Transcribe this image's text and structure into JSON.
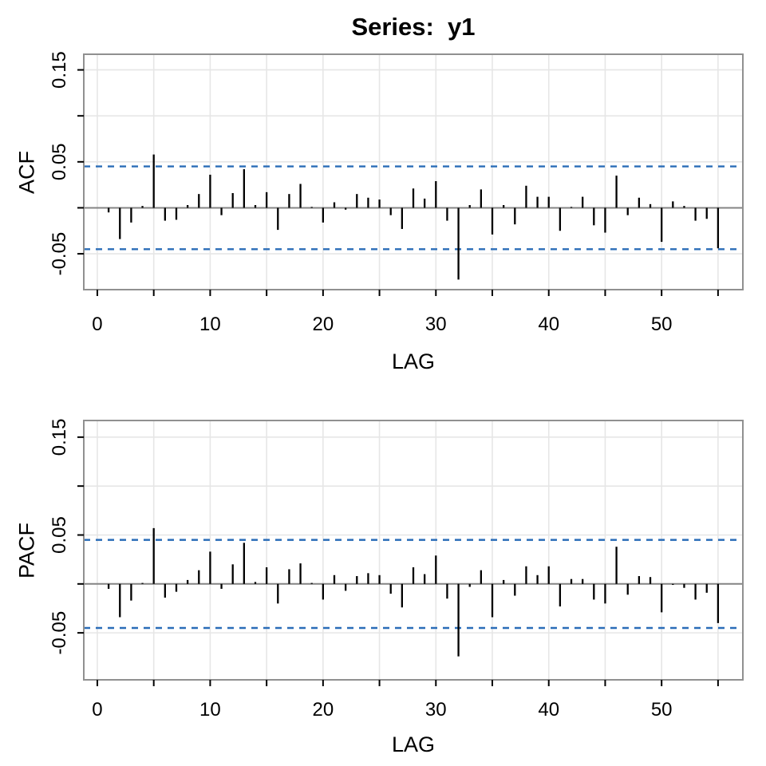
{
  "title": "Series:  y1",
  "colors": {
    "background": "#ffffff",
    "bar": "#000000",
    "confidence_line": "#2b6db8",
    "zero_line": "#848484",
    "grid": "#e6e6e6",
    "panel_border": "#909090",
    "tick": "#000000",
    "text": "#000000"
  },
  "chart_data": [
    {
      "type": "bar",
      "name": "acf-panel",
      "ylabel": "ACF",
      "xlabel": "LAG",
      "lag_start": 1,
      "values": [
        -0.005,
        -0.034,
        -0.016,
        0.002,
        0.058,
        -0.014,
        -0.013,
        0.003,
        0.015,
        0.036,
        -0.008,
        0.016,
        0.042,
        0.003,
        0.017,
        -0.024,
        0.015,
        0.026,
        0.001,
        -0.016,
        0.006,
        -0.002,
        0.015,
        0.011,
        0.009,
        -0.008,
        -0.023,
        0.021,
        0.01,
        0.029,
        -0.014,
        -0.078,
        0.003,
        0.02,
        -0.029,
        0.003,
        -0.018,
        0.024,
        0.012,
        0.012,
        -0.025,
        0.001,
        0.012,
        -0.019,
        -0.027,
        0.035,
        -0.008,
        0.011,
        0.004,
        -0.037,
        0.007,
        0.002,
        -0.014,
        -0.012,
        -0.044
      ],
      "confidence_bounds": [
        -0.045,
        0.045
      ],
      "xlim": [
        -1.2,
        57.2
      ],
      "ylim": [
        -0.089,
        0.167
      ],
      "grid": true,
      "xticks": [
        {
          "v": 0,
          "label": "0"
        },
        {
          "v": 5,
          "label": ""
        },
        {
          "v": 10,
          "label": "10"
        },
        {
          "v": 15,
          "label": ""
        },
        {
          "v": 20,
          "label": "20"
        },
        {
          "v": 25,
          "label": ""
        },
        {
          "v": 30,
          "label": "30"
        },
        {
          "v": 35,
          "label": ""
        },
        {
          "v": 40,
          "label": "40"
        },
        {
          "v": 45,
          "label": ""
        },
        {
          "v": 50,
          "label": "50"
        },
        {
          "v": 55,
          "label": ""
        }
      ],
      "yticks": [
        {
          "v": 0.15,
          "label": "0.15"
        },
        {
          "v": 0.1,
          "label": ""
        },
        {
          "v": 0.05,
          "label": "0.05"
        },
        {
          "v": 0.0,
          "label": ""
        },
        {
          "v": -0.05,
          "label": "-0.05"
        }
      ]
    },
    {
      "type": "bar",
      "name": "pacf-panel",
      "ylabel": "PACF",
      "xlabel": "LAG",
      "lag_start": 1,
      "values": [
        -0.005,
        -0.034,
        -0.017,
        0.001,
        0.057,
        -0.014,
        -0.008,
        0.004,
        0.014,
        0.033,
        -0.005,
        0.02,
        0.042,
        0.002,
        0.017,
        -0.02,
        0.015,
        0.021,
        0.001,
        -0.016,
        0.009,
        -0.007,
        0.008,
        0.011,
        0.009,
        -0.01,
        -0.024,
        0.017,
        0.01,
        0.029,
        -0.015,
        -0.074,
        -0.003,
        0.014,
        -0.034,
        0.004,
        -0.012,
        0.018,
        0.009,
        0.018,
        -0.023,
        0.005,
        0.005,
        -0.016,
        -0.02,
        0.038,
        -0.011,
        0.008,
        0.007,
        -0.029,
        -0.001,
        -0.004,
        -0.016,
        -0.009,
        -0.04
      ],
      "confidence_bounds": [
        -0.045,
        0.045
      ],
      "xlim": [
        -1.2,
        57.2
      ],
      "ylim": [
        -0.098,
        0.167
      ],
      "grid": true,
      "xticks": [
        {
          "v": 0,
          "label": "0"
        },
        {
          "v": 5,
          "label": ""
        },
        {
          "v": 10,
          "label": "10"
        },
        {
          "v": 15,
          "label": ""
        },
        {
          "v": 20,
          "label": "20"
        },
        {
          "v": 25,
          "label": ""
        },
        {
          "v": 30,
          "label": "30"
        },
        {
          "v": 35,
          "label": ""
        },
        {
          "v": 40,
          "label": "40"
        },
        {
          "v": 45,
          "label": ""
        },
        {
          "v": 50,
          "label": "50"
        },
        {
          "v": 55,
          "label": ""
        }
      ],
      "yticks": [
        {
          "v": 0.15,
          "label": "0.15"
        },
        {
          "v": 0.1,
          "label": ""
        },
        {
          "v": 0.05,
          "label": "0.05"
        },
        {
          "v": 0.0,
          "label": ""
        },
        {
          "v": -0.05,
          "label": "-0.05"
        }
      ]
    }
  ]
}
